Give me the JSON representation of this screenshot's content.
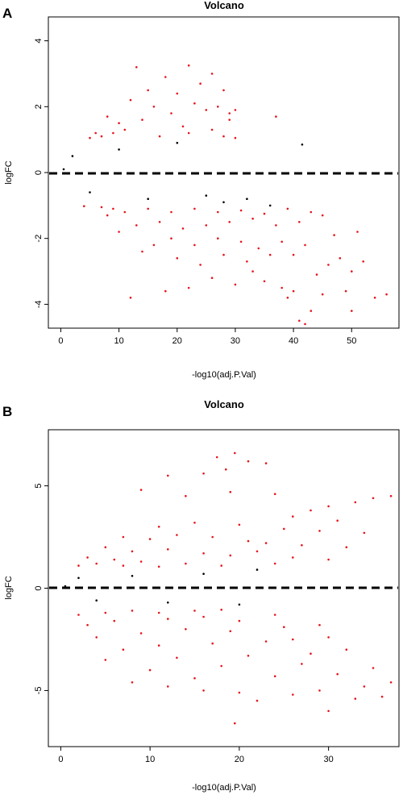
{
  "chart_data": [
    {
      "type": "scatter",
      "panel_label": "A",
      "title": "Volcano",
      "xlabel": "-log10(adj.P.Val)",
      "ylabel": "logFC",
      "xlim": [
        -2,
        58
      ],
      "ylim": [
        -4.7,
        4.7
      ],
      "xticks": [
        0,
        10,
        20,
        30,
        40,
        50
      ],
      "yticks": [
        -4,
        -2,
        0,
        2,
        4
      ],
      "threshold_line_y": 0,
      "grid": false,
      "legend": "none",
      "series": [
        {
          "color": "#000000",
          "points": [
            [
              41.5,
              0.85
            ],
            [
              0.5,
              0.1
            ],
            [
              2,
              0.5
            ],
            [
              5,
              -0.6
            ],
            [
              10,
              0.7
            ],
            [
              15,
              -0.8
            ],
            [
              20,
              0.9
            ],
            [
              25,
              -0.7
            ],
            [
              28,
              -0.9
            ],
            [
              32,
              -0.8
            ],
            [
              36,
              -1.0
            ]
          ]
        },
        {
          "color": "#e8141b",
          "points": [
            [
              13,
              3.2
            ],
            [
              22,
              3.25
            ],
            [
              26,
              3.0
            ],
            [
              18,
              2.9
            ],
            [
              15,
              2.5
            ],
            [
              20,
              2.4
            ],
            [
              28,
              2.5
            ],
            [
              24,
              2.7
            ],
            [
              12,
              2.2
            ],
            [
              16,
              2.0
            ],
            [
              19,
              1.8
            ],
            [
              23,
              2.1
            ],
            [
              25,
              1.9
            ],
            [
              27,
              2.0
            ],
            [
              29,
              1.6
            ],
            [
              30,
              1.9
            ],
            [
              37,
              1.7
            ],
            [
              8,
              1.7
            ],
            [
              10,
              1.5
            ],
            [
              14,
              1.6
            ],
            [
              21,
              1.4
            ],
            [
              6,
              1.2
            ],
            [
              11,
              1.3
            ],
            [
              17,
              1.1
            ],
            [
              22,
              1.2
            ],
            [
              26,
              1.3
            ],
            [
              28,
              1.1
            ],
            [
              30,
              1.05
            ],
            [
              29,
              1.8
            ],
            [
              42,
              -4.6
            ],
            [
              41,
              -4.5
            ],
            [
              43,
              -4.2
            ],
            [
              50,
              -4.2
            ],
            [
              54,
              -3.8
            ],
            [
              56,
              -3.7
            ],
            [
              39,
              -3.8
            ],
            [
              38,
              -3.5
            ],
            [
              40,
              -3.6
            ],
            [
              45,
              -3.7
            ],
            [
              49,
              -3.6
            ],
            [
              12,
              -3.8
            ],
            [
              18,
              -3.6
            ],
            [
              22,
              -3.5
            ],
            [
              26,
              -3.2
            ],
            [
              30,
              -3.4
            ],
            [
              35,
              -3.3
            ],
            [
              33,
              -3.0
            ],
            [
              44,
              -3.1
            ],
            [
              50,
              -3.0
            ],
            [
              52,
              -2.7
            ],
            [
              48,
              -2.6
            ],
            [
              20,
              -2.6
            ],
            [
              24,
              -2.8
            ],
            [
              28,
              -2.5
            ],
            [
              32,
              -2.7
            ],
            [
              36,
              -2.5
            ],
            [
              40,
              -2.5
            ],
            [
              46,
              -2.8
            ],
            [
              14,
              -2.4
            ],
            [
              16,
              -2.2
            ],
            [
              19,
              -2.0
            ],
            [
              23,
              -2.2
            ],
            [
              27,
              -2.0
            ],
            [
              31,
              -2.1
            ],
            [
              34,
              -2.3
            ],
            [
              38,
              -2.1
            ],
            [
              42,
              -2.2
            ],
            [
              47,
              -1.9
            ],
            [
              51,
              -1.8
            ],
            [
              10,
              -1.8
            ],
            [
              13,
              -1.6
            ],
            [
              17,
              -1.5
            ],
            [
              21,
              -1.7
            ],
            [
              25,
              -1.6
            ],
            [
              29,
              -1.5
            ],
            [
              33,
              -1.4
            ],
            [
              37,
              -1.6
            ],
            [
              41,
              -1.5
            ],
            [
              45,
              -1.3
            ],
            [
              8,
              -1.3
            ],
            [
              11,
              -1.2
            ],
            [
              15,
              -1.1
            ],
            [
              19,
              -1.2
            ],
            [
              23,
              -1.1
            ],
            [
              27,
              -1.2
            ],
            [
              31,
              -1.15
            ],
            [
              35,
              -1.25
            ],
            [
              39,
              -1.1
            ],
            [
              43,
              -1.2
            ],
            [
              7,
              -1.05
            ],
            [
              9,
              -1.1
            ],
            [
              4,
              -1.02
            ],
            [
              5,
              1.05
            ],
            [
              7,
              1.1
            ],
            [
              9,
              1.2
            ]
          ]
        }
      ]
    },
    {
      "type": "scatter",
      "panel_label": "B",
      "title": "Volcano",
      "xlabel": "-log10(adj.P.Val)",
      "ylabel": "logFC",
      "xlim": [
        -1.3,
        37.8
      ],
      "ylim": [
        -7.7,
        7.7
      ],
      "xticks": [
        0,
        10,
        20,
        30
      ],
      "yticks": [
        -5,
        0,
        5
      ],
      "threshold_line_y": 0,
      "grid": false,
      "legend": "none",
      "series": [
        {
          "color": "#000000",
          "points": [
            [
              0.5,
              0.1
            ],
            [
              2,
              0.5
            ],
            [
              4,
              -0.6
            ],
            [
              8,
              0.6
            ],
            [
              12,
              -0.7
            ],
            [
              16,
              0.7
            ],
            [
              20,
              -0.8
            ],
            [
              22,
              0.9
            ]
          ]
        },
        {
          "color": "#e8141b",
          "points": [
            [
              19.5,
              6.6
            ],
            [
              17.5,
              6.4
            ],
            [
              21,
              6.2
            ],
            [
              23,
              6.1
            ],
            [
              16,
              5.6
            ],
            [
              12,
              5.5
            ],
            [
              18.5,
              5.8
            ],
            [
              9,
              4.8
            ],
            [
              14,
              4.5
            ],
            [
              19,
              4.7
            ],
            [
              24,
              4.6
            ],
            [
              35,
              4.4
            ],
            [
              37,
              4.5
            ],
            [
              33,
              4.2
            ],
            [
              30,
              4.0
            ],
            [
              28,
              3.8
            ],
            [
              26,
              3.5
            ],
            [
              31,
              3.3
            ],
            [
              11,
              3.0
            ],
            [
              15,
              3.2
            ],
            [
              20,
              3.1
            ],
            [
              25,
              2.9
            ],
            [
              29,
              2.8
            ],
            [
              34,
              2.7
            ],
            [
              7,
              2.5
            ],
            [
              10,
              2.4
            ],
            [
              13,
              2.6
            ],
            [
              17,
              2.5
            ],
            [
              21,
              2.3
            ],
            [
              23,
              2.2
            ],
            [
              27,
              2.1
            ],
            [
              32,
              2.0
            ],
            [
              5,
              2.0
            ],
            [
              8,
              1.8
            ],
            [
              12,
              1.9
            ],
            [
              16,
              1.7
            ],
            [
              19,
              1.6
            ],
            [
              22,
              1.8
            ],
            [
              26,
              1.5
            ],
            [
              30,
              1.4
            ],
            [
              3,
              1.5
            ],
            [
              6,
              1.4
            ],
            [
              9,
              1.3
            ],
            [
              14,
              1.2
            ],
            [
              18,
              1.1
            ],
            [
              24,
              1.2
            ],
            [
              4,
              1.2
            ],
            [
              7,
              1.1
            ],
            [
              11,
              1.05
            ],
            [
              2,
              1.1
            ],
            [
              19.5,
              -6.6
            ],
            [
              30,
              -6.0
            ],
            [
              36,
              -5.3
            ],
            [
              33,
              -5.4
            ],
            [
              22,
              -5.5
            ],
            [
              26,
              -5.2
            ],
            [
              29,
              -5.0
            ],
            [
              34,
              -4.8
            ],
            [
              37,
              -4.6
            ],
            [
              20,
              -5.1
            ],
            [
              16,
              -5.0
            ],
            [
              12,
              -4.8
            ],
            [
              8,
              -4.6
            ],
            [
              15,
              -4.4
            ],
            [
              24,
              -4.3
            ],
            [
              31,
              -4.2
            ],
            [
              35,
              -3.9
            ],
            [
              10,
              -4.0
            ],
            [
              18,
              -3.8
            ],
            [
              27,
              -3.7
            ],
            [
              5,
              -3.5
            ],
            [
              13,
              -3.4
            ],
            [
              21,
              -3.3
            ],
            [
              28,
              -3.2
            ],
            [
              32,
              -3.0
            ],
            [
              7,
              -3.0
            ],
            [
              11,
              -2.8
            ],
            [
              17,
              -2.7
            ],
            [
              23,
              -2.6
            ],
            [
              26,
              -2.5
            ],
            [
              30,
              -2.4
            ],
            [
              4,
              -2.4
            ],
            [
              9,
              -2.2
            ],
            [
              14,
              -2.0
            ],
            [
              19,
              -2.1
            ],
            [
              25,
              -1.9
            ],
            [
              29,
              -1.8
            ],
            [
              3,
              -1.8
            ],
            [
              6,
              -1.6
            ],
            [
              12,
              -1.5
            ],
            [
              16,
              -1.4
            ],
            [
              20,
              -1.6
            ],
            [
              24,
              -1.3
            ],
            [
              2,
              -1.3
            ],
            [
              5,
              -1.2
            ],
            [
              8,
              -1.1
            ],
            [
              11,
              -1.2
            ],
            [
              15,
              -1.1
            ],
            [
              18,
              -1.05
            ]
          ]
        }
      ]
    }
  ]
}
